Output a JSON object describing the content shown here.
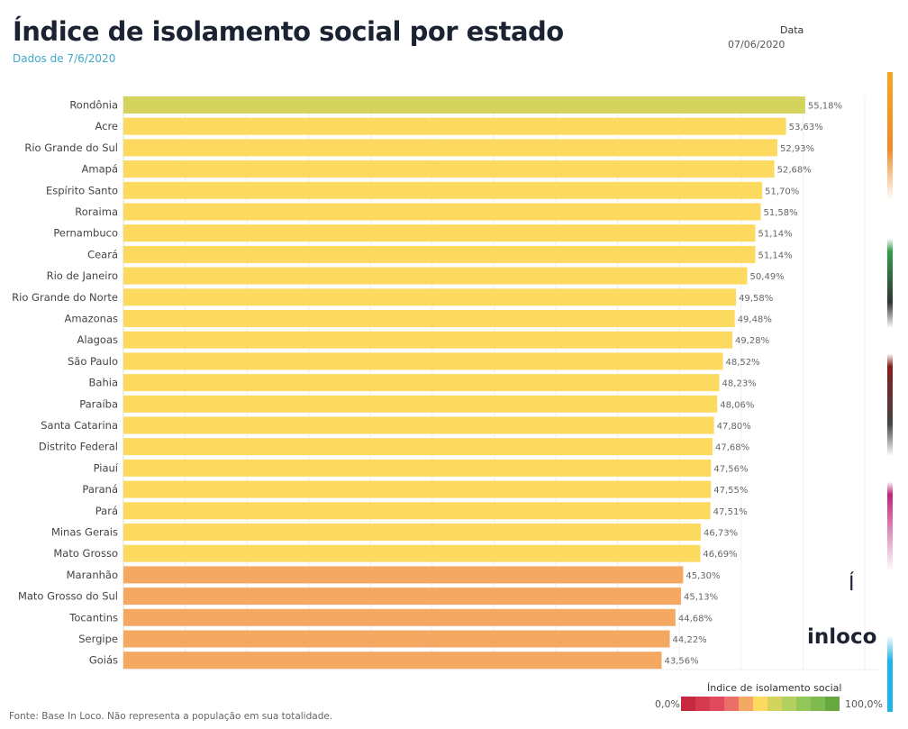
{
  "header": {
    "title": "Índice de isolamento social por estado",
    "subtitle": "Dados de 7/6/2020",
    "date_label": "Data",
    "date_value": "07/06/2020"
  },
  "logo": {
    "accent": "Í",
    "text": "inloco"
  },
  "legend": {
    "title": "Índice de isolamento social",
    "min": "0,0%",
    "max": "100,0%",
    "colors": [
      "#c8283f",
      "#d63a4f",
      "#e04a5c",
      "#ea6f66",
      "#f4a862",
      "#fcd95f",
      "#d4d35e",
      "#b3d160",
      "#95c65a",
      "#7fba4f",
      "#67a83f"
    ]
  },
  "footer": "Fonte: Base In Loco. Não representa a população em sua totalidade.",
  "chart_data": {
    "type": "bar",
    "orientation": "horizontal",
    "xlim": [
      0,
      60
    ],
    "grid": true,
    "categories": [
      "Rondônia",
      "Acre",
      "Rio Grande do Sul",
      "Amapá",
      "Espírito Santo",
      "Roraima",
      "Pernambuco",
      "Ceará",
      "Rio de Janeiro",
      "Rio Grande do Norte",
      "Amazonas",
      "Alagoas",
      "São Paulo",
      "Bahia",
      "Paraíba",
      "Santa Catarina",
      "Distrito Federal",
      "Piauí",
      "Paraná",
      "Pará",
      "Minas Gerais",
      "Mato Grosso",
      "Maranhão",
      "Mato Grosso do Sul",
      "Tocantins",
      "Sergipe",
      "Goiás"
    ],
    "values": [
      55.18,
      53.63,
      52.93,
      52.68,
      51.7,
      51.58,
      51.14,
      51.14,
      50.49,
      49.58,
      49.48,
      49.28,
      48.52,
      48.23,
      48.06,
      47.8,
      47.68,
      47.56,
      47.55,
      47.51,
      46.73,
      46.69,
      45.3,
      45.13,
      44.68,
      44.22,
      43.56
    ],
    "labels": [
      "55,18%",
      "53,63%",
      "52,93%",
      "52,68%",
      "51,70%",
      "51,58%",
      "51,14%",
      "51,14%",
      "50,49%",
      "49,58%",
      "49,48%",
      "49,28%",
      "48,52%",
      "48,23%",
      "48,06%",
      "47,80%",
      "47,68%",
      "47,56%",
      "47,55%",
      "47,51%",
      "46,73%",
      "46,69%",
      "45,30%",
      "45,13%",
      "44,68%",
      "44,22%",
      "43,56%"
    ]
  }
}
